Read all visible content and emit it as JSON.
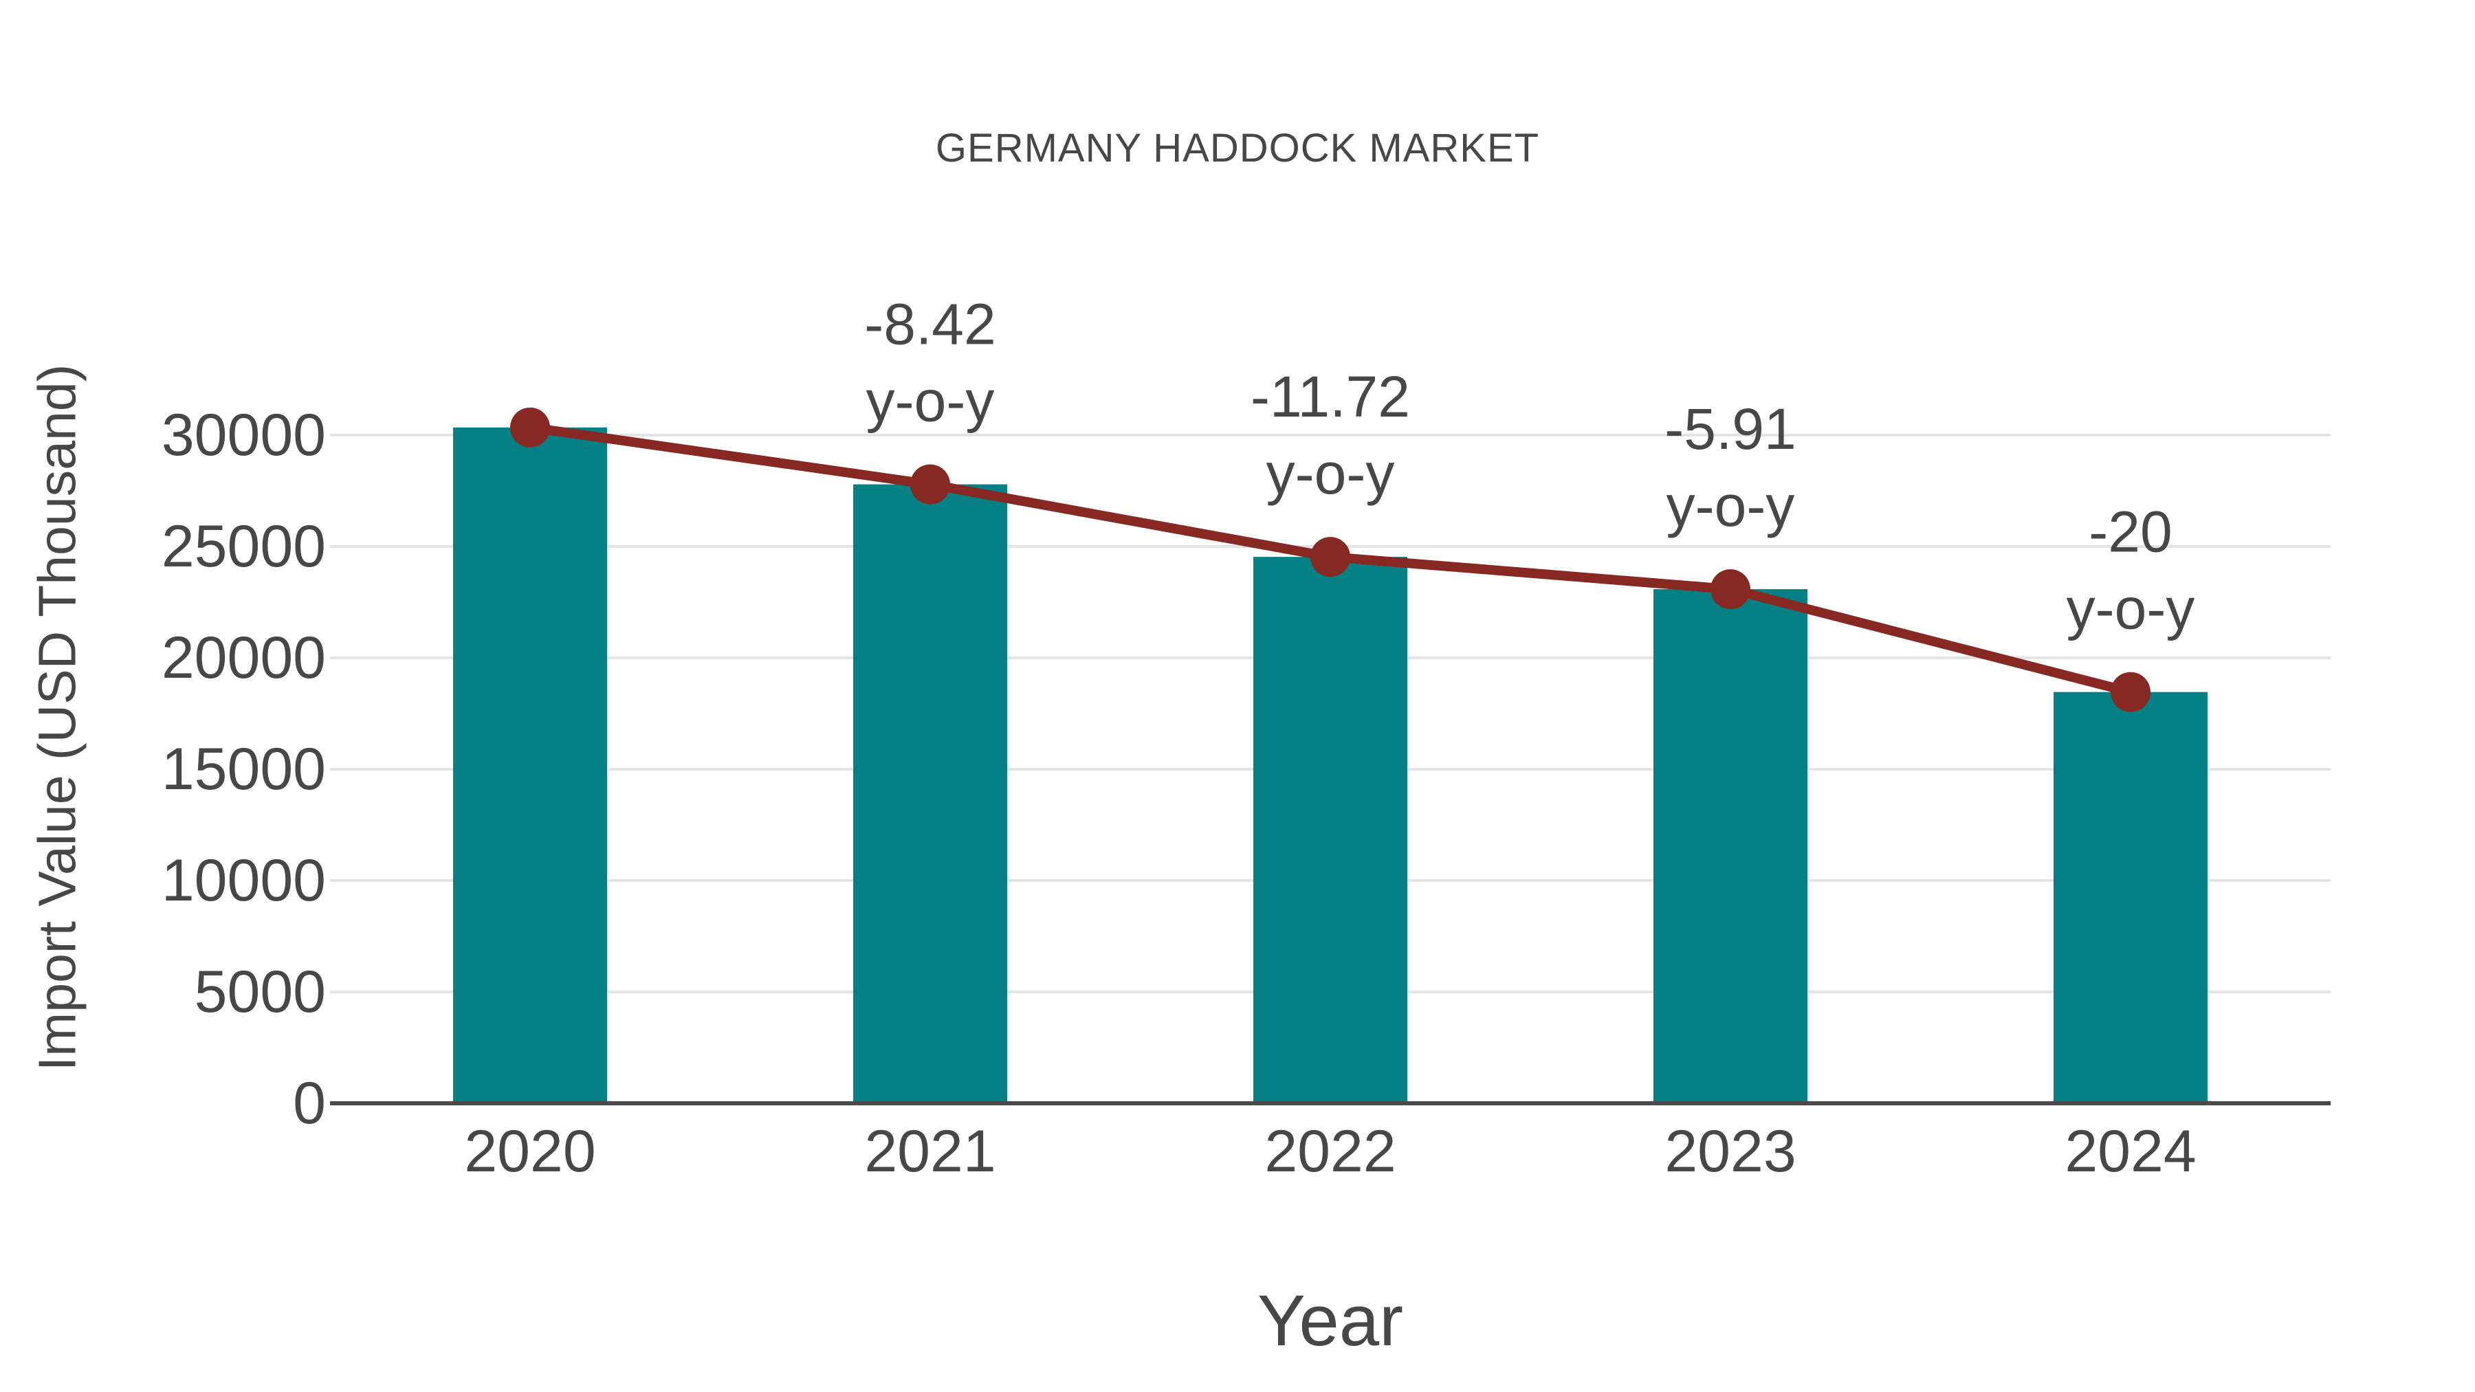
{
  "page": {
    "background": "#ffffff"
  },
  "chart_data": {
    "type": "bar",
    "title": "GERMANY HADDOCK MARKET",
    "xlabel": "Year",
    "ylabel": "Import Value (USD Thousand)",
    "categories": [
      "2020",
      "2021",
      "2022",
      "2023",
      "2024"
    ],
    "series": [
      {
        "name": "import-value-bars",
        "type": "bar",
        "color": "#048185",
        "values": [
          30345,
          27790,
          24533,
          23083,
          18466
        ]
      },
      {
        "name": "import-value-trend-line",
        "type": "line",
        "color": "#882822",
        "values": [
          30345,
          27790,
          24533,
          23083,
          18466
        ]
      }
    ],
    "annotations": [
      {
        "category": "2021",
        "value_label": "-8.42",
        "suffix_label": "y-o-y"
      },
      {
        "category": "2022",
        "value_label": "-11.72",
        "suffix_label": "y-o-y"
      },
      {
        "category": "2023",
        "value_label": "-5.91",
        "suffix_label": "y-o-y"
      },
      {
        "category": "2024",
        "value_label": "-20",
        "suffix_label": "y-o-y"
      }
    ],
    "yticks": [
      0,
      5000,
      10000,
      15000,
      20000,
      25000,
      30000
    ],
    "ylim": [
      0,
      32500
    ],
    "grid": true,
    "legend_position": "none",
    "colors": {
      "text": "#474747",
      "grid": "#e4e4e4",
      "axis": "#4a4a4a",
      "background": "#ffffff"
    }
  }
}
